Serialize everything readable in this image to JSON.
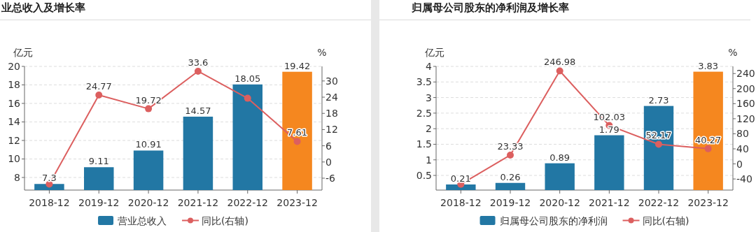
{
  "chart_data": [
    {
      "type": "bar",
      "title": "业总收入及增长率",
      "ylabel": "亿元",
      "y2label": "%",
      "categories": [
        "2018-12",
        "2019-12",
        "2020-12",
        "2021-12",
        "2022-12",
        "2023-12"
      ],
      "series": [
        {
          "name": "营业总收入",
          "color": "#2277a4",
          "colors": [
            "#2277a4",
            "#2277a4",
            "#2277a4",
            "#2277a4",
            "#2277a4",
            "#f5871f"
          ],
          "values": [
            7.3,
            9.11,
            10.91,
            14.57,
            18.05,
            19.42
          ],
          "value_labels": [
            "7.3",
            "9.11",
            "10.91",
            "14.57",
            "18.05",
            "19.42"
          ]
        },
        {
          "name": "同比(右轴)",
          "type": "line",
          "axis": "y2",
          "color": "#dc5f5f",
          "marker": "circle",
          "values": [
            -8.2,
            24.77,
            19.72,
            33.6,
            23.6,
            7.61
          ],
          "value_labels": [
            null,
            "24.77",
            "19.72",
            "33.6",
            null,
            "7.61"
          ]
        }
      ],
      "ylim": [
        6.64,
        20
      ],
      "yticks": [
        8,
        10,
        12,
        14,
        16,
        18,
        20
      ],
      "y2lim": [
        -10.4,
        35.4
      ],
      "y2ticks": [
        -6,
        0,
        6,
        12,
        18,
        24,
        30
      ],
      "grid": "y",
      "legend": "bottom"
    },
    {
      "type": "bar",
      "title": "归属母公司股东的净利润及增长率",
      "ylabel": "亿元",
      "y2label": "%",
      "categories": [
        "2018-12",
        "2019-12",
        "2020-12",
        "2021-12",
        "2022-12",
        "2023-12"
      ],
      "series": [
        {
          "name": "归属母公司股东的净利润",
          "color": "#2277a4",
          "colors": [
            "#2277a4",
            "#2277a4",
            "#2277a4",
            "#2277a4",
            "#2277a4",
            "#f5871f"
          ],
          "values": [
            0.21,
            0.26,
            0.89,
            1.79,
            2.73,
            3.83
          ],
          "value_labels": [
            "0.21",
            "0.26",
            "0.89",
            "1.79",
            "2.73",
            "3.83"
          ]
        },
        {
          "name": "同比(右轴)",
          "type": "line",
          "axis": "y2",
          "color": "#dc5f5f",
          "marker": "circle",
          "values": [
            -54,
            23.33,
            246.98,
            102.03,
            52.17,
            40.27
          ],
          "value_labels": [
            null,
            "23.33",
            "246.98",
            "102.03",
            "52.17",
            "40.27"
          ]
        }
      ],
      "ylim": [
        0.03,
        4
      ],
      "yticks": [
        0.5,
        1,
        1.5,
        2,
        2.5,
        3,
        3.5,
        4
      ],
      "y2lim": [
        -69.5,
        259
      ],
      "y2ticks": [
        -40,
        0,
        40,
        80,
        120,
        160,
        200,
        240
      ],
      "grid": "y",
      "legend": "bottom"
    }
  ]
}
